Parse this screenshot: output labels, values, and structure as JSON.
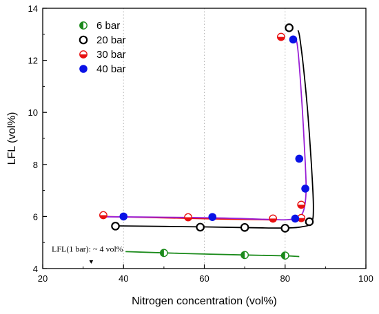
{
  "chart_data": {
    "type": "scatter",
    "xlabel": "Nitrogen concentration (vol%)",
    "ylabel": "LFL (vol%)",
    "xlim": [
      20,
      100
    ],
    "ylim": [
      4,
      14
    ],
    "xticks": [
      20,
      40,
      60,
      80,
      100
    ],
    "yticks": [
      4,
      6,
      8,
      10,
      12,
      14
    ],
    "x_tick_labels": [
      "20",
      "40",
      "60",
      "80",
      "100"
    ],
    "y_tick_labels": [
      "4",
      "6",
      "8",
      "10",
      "12",
      "14"
    ],
    "grid": "vertical dotted",
    "legend_position": "top-left",
    "series": [
      {
        "name": "6 bar",
        "color": "#1a8a1a",
        "marker": "half-filled-left",
        "x": [
          50,
          70,
          80
        ],
        "y": [
          4.6,
          4.52,
          4.5
        ],
        "curve": [
          [
            40.5,
            4.65
          ],
          [
            55,
            4.58
          ],
          [
            70,
            4.52
          ],
          [
            80,
            4.49
          ],
          [
            83.5,
            4.46
          ]
        ]
      },
      {
        "name": "20 bar",
        "color": "#000000",
        "marker": "open",
        "x": [
          38,
          59,
          70,
          80,
          86,
          81
        ],
        "y": [
          5.63,
          5.59,
          5.58,
          5.55,
          5.8,
          13.25
        ],
        "curve": [
          [
            38,
            5.64
          ],
          [
            60,
            5.6
          ],
          [
            75,
            5.56
          ],
          [
            80.5,
            5.56
          ],
          [
            84,
            5.6
          ],
          [
            86.5,
            5.76
          ],
          [
            87,
            6.4
          ],
          [
            86.5,
            8
          ],
          [
            85.6,
            10
          ],
          [
            84.5,
            11.8
          ],
          [
            83.6,
            12.9
          ],
          [
            83.2,
            13.15
          ]
        ]
      },
      {
        "name": "30 bar",
        "color": "#e81010",
        "marker": "half-filled-bottom",
        "x": [
          35,
          56,
          77,
          79,
          84,
          84
        ],
        "y": [
          6.05,
          5.97,
          5.92,
          12.9,
          5.94,
          6.45
        ],
        "curve": [
          [
            35,
            6.0
          ],
          [
            50,
            5.95
          ],
          [
            65,
            5.9
          ],
          [
            77,
            5.87
          ]
        ]
      },
      {
        "name": "40 bar",
        "color": "#0a12e6",
        "marker": "filled",
        "x": [
          40,
          62,
          82.5,
          82,
          83.5,
          85
        ],
        "y": [
          6.0,
          5.98,
          5.92,
          12.8,
          8.22,
          7.07
        ],
        "curve": [
          [
            35,
            5.99
          ],
          [
            50,
            5.97
          ],
          [
            65,
            5.94
          ],
          [
            77,
            5.88
          ],
          [
            81,
            5.88
          ],
          [
            83.5,
            5.98
          ],
          [
            84.7,
            6.3
          ],
          [
            85.2,
            7.0
          ],
          [
            85,
            8.0
          ],
          [
            84.5,
            9.5
          ],
          [
            83.8,
            11.2
          ],
          [
            83.1,
            12.5
          ],
          [
            82.6,
            12.85
          ]
        ]
      }
    ],
    "annotations": [
      {
        "text": "LFL(1 bar): ~ 4 vol%",
        "x": 32,
        "y": 4.6,
        "arrow_to": 4.0
      }
    ]
  }
}
